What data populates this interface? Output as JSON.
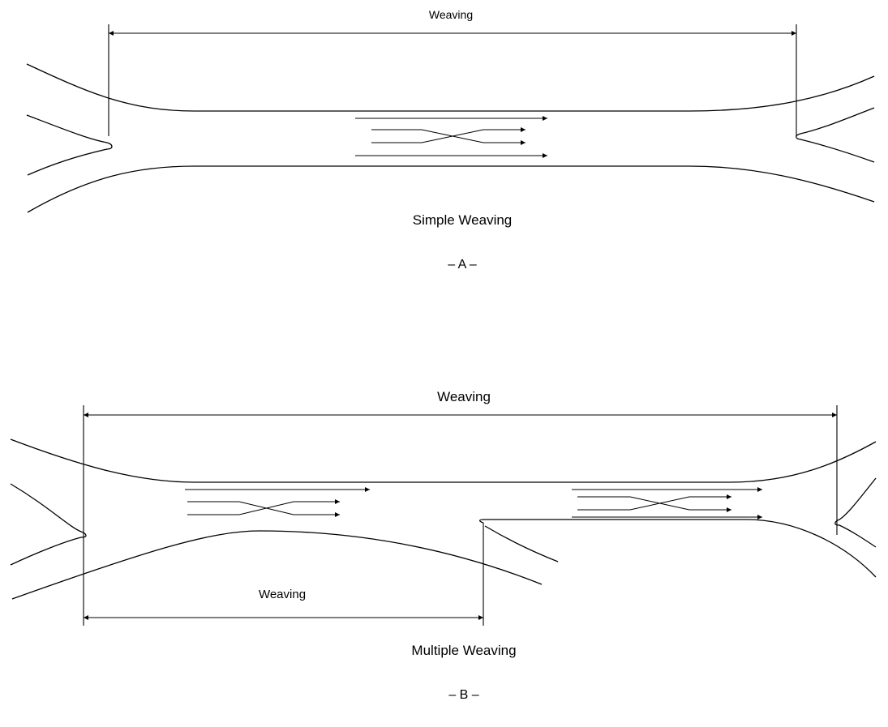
{
  "diagram_a": {
    "dimension_label": "Weaving",
    "title": "Simple Weaving",
    "tag": "– A –"
  },
  "diagram_b": {
    "dimension_label_top": "Weaving",
    "dimension_label_bottom": "Weaving",
    "title": "Multiple Weaving",
    "tag": "– B –"
  },
  "colors": {
    "line": "#000000",
    "background": "#ffffff"
  }
}
